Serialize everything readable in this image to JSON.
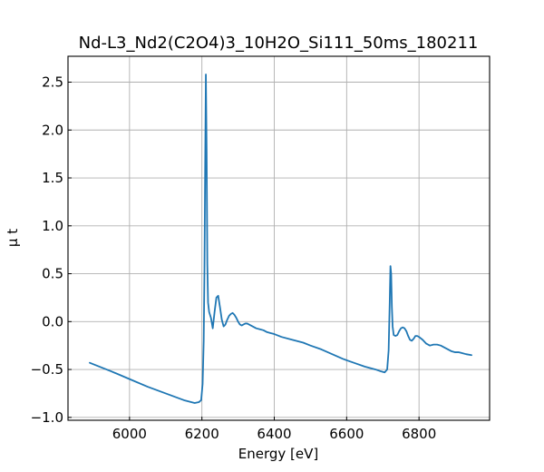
{
  "chart_data": {
    "type": "line",
    "title": "Nd-L3_Nd2(C2O4)3_10H2O_Si111_50ms_180211",
    "xlabel": "Energy [eV]",
    "ylabel": "μ t",
    "xlim": [
      5830,
      6995
    ],
    "ylim": [
      -1.03,
      2.77
    ],
    "xticks": [
      6000,
      6200,
      6400,
      6600,
      6800
    ],
    "xtick_labels": [
      "6000",
      "6200",
      "6400",
      "6600",
      "6800"
    ],
    "yticks": [
      -1.0,
      -0.5,
      0.0,
      0.5,
      1.0,
      1.5,
      2.0,
      2.5
    ],
    "ytick_labels": [
      "−1.0",
      "−0.5",
      "0.0",
      "0.5",
      "1.0",
      "1.5",
      "2.0",
      "2.5"
    ],
    "grid": true,
    "series": [
      {
        "color": "#1f77b4",
        "x": [
          5890,
          5950,
          6000,
          6050,
          6100,
          6150,
          6180,
          6192,
          6198,
          6202,
          6205,
          6207,
          6209,
          6211,
          6213,
          6215,
          6217,
          6220,
          6225,
          6230,
          6235,
          6240,
          6245,
          6250,
          6255,
          6260,
          6265,
          6270,
          6275,
          6280,
          6285,
          6290,
          6295,
          6300,
          6305,
          6310,
          6315,
          6320,
          6325,
          6330,
          6340,
          6350,
          6360,
          6370,
          6380,
          6390,
          6400,
          6420,
          6450,
          6480,
          6500,
          6530,
          6560,
          6590,
          6620,
          6650,
          6680,
          6695,
          6705,
          6712,
          6716,
          6719,
          6721,
          6723,
          6725,
          6727,
          6730,
          6735,
          6740,
          6745,
          6750,
          6755,
          6760,
          6765,
          6770,
          6775,
          6780,
          6785,
          6790,
          6795,
          6800,
          6810,
          6820,
          6830,
          6840,
          6850,
          6860,
          6870,
          6880,
          6890,
          6900,
          6910,
          6920,
          6930,
          6945
        ],
        "y": [
          -0.43,
          -0.52,
          -0.6,
          -0.68,
          -0.75,
          -0.82,
          -0.85,
          -0.84,
          -0.82,
          -0.65,
          -0.2,
          0.5,
          1.6,
          2.58,
          1.8,
          0.6,
          0.2,
          0.1,
          0.04,
          -0.07,
          0.1,
          0.25,
          0.27,
          0.15,
          0.02,
          -0.05,
          -0.03,
          0.02,
          0.06,
          0.08,
          0.09,
          0.07,
          0.04,
          0.0,
          -0.03,
          -0.04,
          -0.03,
          -0.02,
          -0.02,
          -0.03,
          -0.05,
          -0.07,
          -0.08,
          -0.09,
          -0.11,
          -0.12,
          -0.13,
          -0.16,
          -0.19,
          -0.22,
          -0.25,
          -0.29,
          -0.34,
          -0.39,
          -0.43,
          -0.47,
          -0.5,
          -0.52,
          -0.53,
          -0.5,
          -0.3,
          0.2,
          0.58,
          0.5,
          0.15,
          -0.05,
          -0.14,
          -0.15,
          -0.14,
          -0.1,
          -0.07,
          -0.06,
          -0.07,
          -0.1,
          -0.15,
          -0.19,
          -0.2,
          -0.18,
          -0.15,
          -0.15,
          -0.16,
          -0.19,
          -0.23,
          -0.25,
          -0.24,
          -0.24,
          -0.25,
          -0.27,
          -0.29,
          -0.31,
          -0.32,
          -0.32,
          -0.33,
          -0.34,
          -0.35
        ]
      }
    ]
  }
}
